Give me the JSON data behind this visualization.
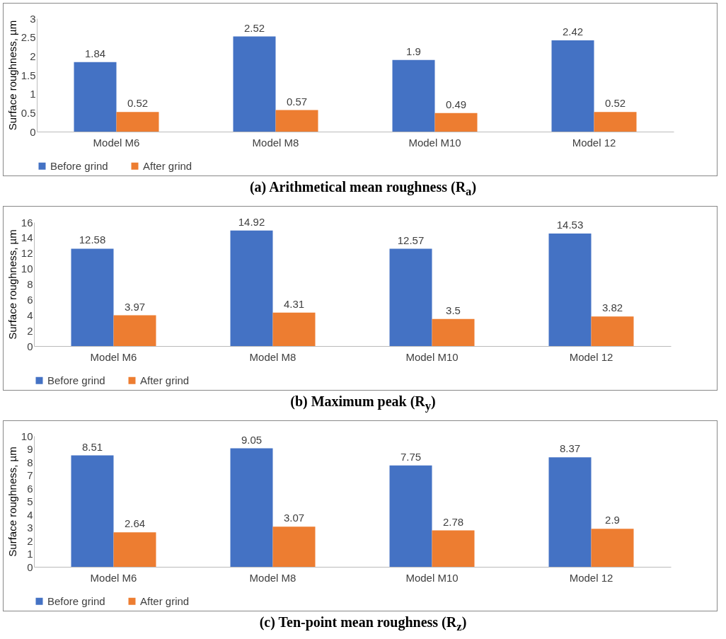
{
  "chart_data": [
    {
      "type": "bar",
      "title": "(a)  Arithmetical mean roughness (R$_{a}$)",
      "ylabel": "Surface roughness, µm",
      "categories": [
        "Model M6",
        "Model M8",
        "Model M10",
        "Model 12"
      ],
      "series": [
        {
          "name": "Before grind",
          "color": "#4472c4",
          "values": [
            1.84,
            2.52,
            1.9,
            2.42
          ]
        },
        {
          "name": "After grind",
          "color": "#ed7d31",
          "values": [
            0.52,
            0.57,
            0.49,
            0.52
          ]
        }
      ],
      "ylim": [
        0,
        3
      ],
      "yticks": [
        0,
        0.5,
        1,
        1.5,
        2,
        2.5,
        3
      ],
      "data_labels": true,
      "legend": "bottom"
    },
    {
      "type": "bar",
      "title": "(b)  Maximum peak (R$_{y}$)",
      "ylabel": "Surface roughness, µm",
      "categories": [
        "Model M6",
        "Model M8",
        "Model M10",
        "Model 12"
      ],
      "series": [
        {
          "name": "Before grind",
          "color": "#4472c4",
          "values": [
            12.58,
            14.92,
            12.57,
            14.53
          ]
        },
        {
          "name": "After grind",
          "color": "#ed7d31",
          "values": [
            3.97,
            4.31,
            3.5,
            3.82
          ]
        }
      ],
      "ylim": [
        0,
        16
      ],
      "yticks": [
        0,
        2,
        4,
        6,
        8,
        10,
        12,
        14,
        16
      ],
      "data_labels": true,
      "legend": "bottom"
    },
    {
      "type": "bar",
      "title": "(c)  Ten-point mean roughness (R$_{z}$)",
      "ylabel": "Surface roughness, µm",
      "categories": [
        "Model M6",
        "Model M8",
        "Model M10",
        "Model 12"
      ],
      "series": [
        {
          "name": "Before grind",
          "color": "#4472c4",
          "values": [
            8.51,
            9.05,
            7.75,
            8.37
          ]
        },
        {
          "name": "After grind",
          "color": "#ed7d31",
          "values": [
            2.64,
            3.07,
            2.78,
            2.9
          ]
        }
      ],
      "ylim": [
        0,
        10
      ],
      "yticks": [
        0,
        1,
        2,
        3,
        4,
        5,
        6,
        7,
        8,
        9,
        10
      ],
      "data_labels": true,
      "legend": "bottom"
    }
  ]
}
